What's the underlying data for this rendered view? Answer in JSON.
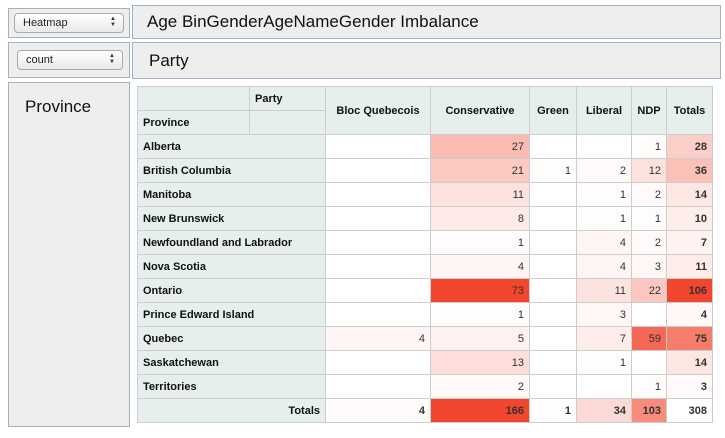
{
  "renderer": {
    "selected": "Heatmap"
  },
  "aggregator": {
    "selected": "count"
  },
  "unused_attributes": [
    "Age Bin",
    "Gender",
    "Age",
    "Name",
    "Gender Imbalance"
  ],
  "cols_area": [
    "Party"
  ],
  "rows_area": [
    "Province"
  ],
  "table": {
    "col_attr": "Party",
    "row_attr": "Province",
    "columns": [
      "Bloc Quebecois",
      "Conservative",
      "Green",
      "Liberal",
      "NDP"
    ],
    "totals_label": "Totals",
    "rows": [
      {
        "label": "Alberta",
        "values": [
          null,
          27,
          null,
          null,
          1
        ],
        "total": 28
      },
      {
        "label": "British Columbia",
        "values": [
          null,
          21,
          1,
          2,
          12
        ],
        "total": 36
      },
      {
        "label": "Manitoba",
        "values": [
          null,
          11,
          null,
          1,
          2
        ],
        "total": 14
      },
      {
        "label": "New Brunswick",
        "values": [
          null,
          8,
          null,
          1,
          1
        ],
        "total": 10
      },
      {
        "label": "Newfoundland and Labrador",
        "values": [
          null,
          1,
          null,
          4,
          2
        ],
        "total": 7
      },
      {
        "label": "Nova Scotia",
        "values": [
          null,
          4,
          null,
          4,
          3
        ],
        "total": 11
      },
      {
        "label": "Ontario",
        "values": [
          null,
          73,
          null,
          11,
          22
        ],
        "total": 106
      },
      {
        "label": "Prince Edward Island",
        "values": [
          null,
          1,
          null,
          3,
          null
        ],
        "total": 4
      },
      {
        "label": "Quebec",
        "values": [
          4,
          5,
          null,
          7,
          59
        ],
        "total": 75
      },
      {
        "label": "Saskatchewan",
        "values": [
          null,
          13,
          null,
          1,
          null
        ],
        "total": 14
      },
      {
        "label": "Territories",
        "values": [
          null,
          2,
          null,
          null,
          1
        ],
        "total": 3
      }
    ],
    "col_totals": [
      4,
      166,
      1,
      34,
      103
    ],
    "grand_total": 308
  },
  "colors": {
    "heat_max": "#f2462e",
    "heat_min": "#ffffff",
    "header_bg": "#e6eeee",
    "panel_bg": "#eeeeee",
    "panel_border": "#a2b1c6"
  }
}
